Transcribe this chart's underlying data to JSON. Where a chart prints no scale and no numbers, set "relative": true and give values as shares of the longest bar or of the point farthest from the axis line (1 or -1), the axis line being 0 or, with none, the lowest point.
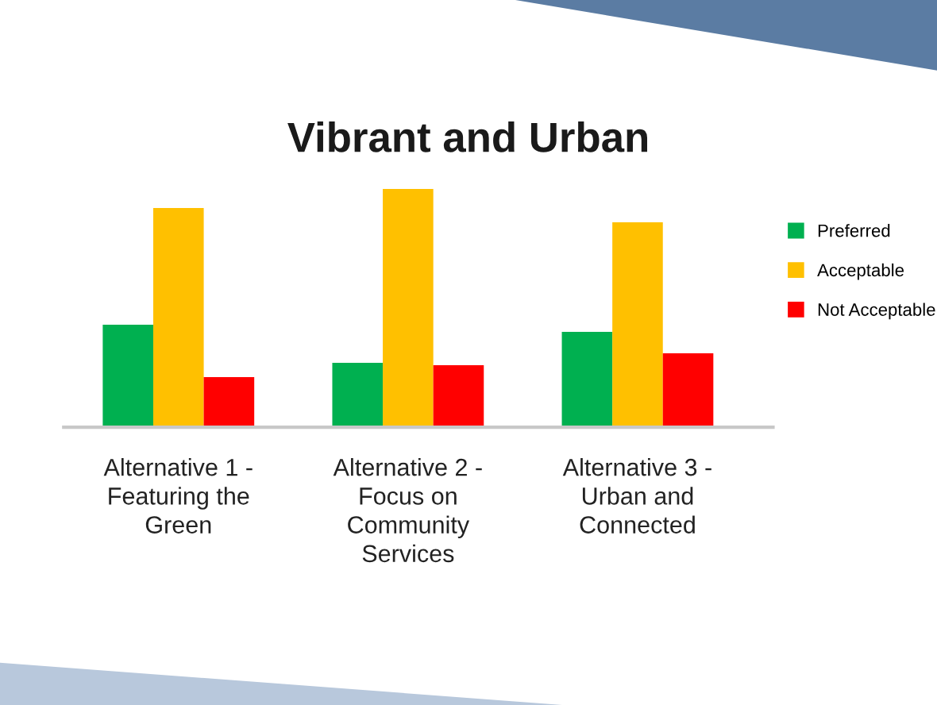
{
  "chart_data": {
    "type": "bar",
    "title": "Vibrant and Urban",
    "relative": true,
    "categories": [
      "Alternative 1 -\nFeaturing the\nGreen",
      "Alternative 2 -\nFocus on\nCommunity\nServices",
      "Alternative 3 -\nUrban and\nConnected"
    ],
    "series": [
      {
        "name": "Preferred",
        "color": "#00b050",
        "values": [
          0.43,
          0.27,
          0.4
        ]
      },
      {
        "name": "Acceptable",
        "color": "#ffc000",
        "values": [
          0.92,
          1,
          0.86
        ]
      },
      {
        "name": "Not Acceptable",
        "color": "#ff0000",
        "values": [
          0.21,
          0.26,
          0.31
        ]
      }
    ],
    "legend": "right",
    "grid": false
  }
}
